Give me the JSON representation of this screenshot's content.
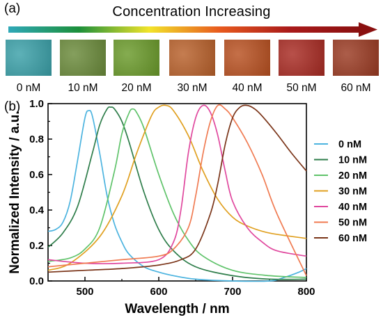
{
  "figure": {
    "panel_a_label": "(a)",
    "panel_b_label": "(b)",
    "arrow_title": "Concentration Increasing",
    "gradient_colors": [
      "#2fa8b8",
      "#1b8f3a",
      "#f2e42a",
      "#e85a1e",
      "#a91a1a",
      "#8a1010"
    ],
    "images": [
      {
        "label": "0 nM",
        "color": "#3aa0a8"
      },
      {
        "label": "10 nM",
        "color": "#6a8a3a"
      },
      {
        "label": "20 nM",
        "color": "#6a9a2a"
      },
      {
        "label": "30 nM",
        "color": "#b8602a"
      },
      {
        "label": "40 nM",
        "color": "#b85020"
      },
      {
        "label": "50 nM",
        "color": "#a82a22"
      },
      {
        "label": "60 nM",
        "color": "#9a3a22"
      }
    ]
  },
  "chart_data": {
    "type": "line",
    "title": "",
    "xlabel": "Wavelength / nm",
    "ylabel": "Normalized Intensity / a.u.",
    "xlim": [
      450,
      800
    ],
    "ylim": [
      0.0,
      1.0
    ],
    "xticks": [
      "500",
      "600",
      "700",
      "800"
    ],
    "yticks": [
      "0.0",
      "0.2",
      "0.4",
      "0.6",
      "0.8",
      "1.0"
    ],
    "legend_position": "right",
    "grid": false,
    "series": [
      {
        "name": "0 nM",
        "color": "#4bb3df",
        "x": [
          450,
          460,
          470,
          480,
          490,
          500,
          505,
          510,
          520,
          530,
          540,
          550,
          560,
          580,
          600,
          620,
          650,
          700,
          750,
          770,
          790,
          800
        ],
        "y": [
          0.28,
          0.29,
          0.33,
          0.45,
          0.68,
          0.92,
          0.96,
          0.93,
          0.72,
          0.48,
          0.32,
          0.22,
          0.15,
          0.08,
          0.05,
          0.03,
          0.01,
          0.0,
          0.0,
          0.02,
          0.05,
          0.07
        ]
      },
      {
        "name": "10 nM",
        "color": "#2e7d4a",
        "x": [
          450,
          470,
          490,
          510,
          520,
          530,
          535,
          540,
          550,
          560,
          580,
          600,
          620,
          650,
          700,
          750,
          800
        ],
        "y": [
          0.19,
          0.27,
          0.42,
          0.72,
          0.88,
          0.97,
          0.98,
          0.97,
          0.9,
          0.78,
          0.5,
          0.29,
          0.17,
          0.08,
          0.03,
          0.01,
          0.01
        ]
      },
      {
        "name": "20 nM",
        "color": "#5fc36a",
        "x": [
          450,
          480,
          500,
          520,
          540,
          550,
          560,
          565,
          570,
          580,
          600,
          620,
          640,
          660,
          700,
          750,
          800
        ],
        "y": [
          0.11,
          0.13,
          0.18,
          0.3,
          0.62,
          0.83,
          0.95,
          0.97,
          0.95,
          0.86,
          0.6,
          0.38,
          0.23,
          0.14,
          0.06,
          0.03,
          0.02
        ]
      },
      {
        "name": "30 nM",
        "color": "#e0a020",
        "x": [
          450,
          480,
          520,
          550,
          570,
          590,
          600,
          610,
          620,
          640,
          660,
          680,
          700,
          720,
          750,
          800
        ],
        "y": [
          0.06,
          0.1,
          0.25,
          0.48,
          0.72,
          0.93,
          0.98,
          0.99,
          0.96,
          0.82,
          0.62,
          0.46,
          0.36,
          0.31,
          0.27,
          0.24
        ]
      },
      {
        "name": "40 nM",
        "color": "#e0489e",
        "x": [
          450,
          500,
          550,
          600,
          620,
          630,
          640,
          650,
          660,
          670,
          680,
          690,
          700,
          720,
          740,
          760,
          800
        ],
        "y": [
          0.12,
          0.1,
          0.1,
          0.12,
          0.22,
          0.4,
          0.72,
          0.92,
          0.99,
          0.95,
          0.82,
          0.62,
          0.45,
          0.3,
          0.22,
          0.17,
          0.14
        ]
      },
      {
        "name": "50 nM",
        "color": "#f07b52",
        "x": [
          450,
          500,
          550,
          600,
          620,
          640,
          650,
          660,
          670,
          680,
          690,
          700,
          720,
          740,
          760,
          800
        ],
        "y": [
          0.08,
          0.1,
          0.12,
          0.14,
          0.18,
          0.3,
          0.48,
          0.72,
          0.9,
          0.99,
          0.97,
          0.92,
          0.78,
          0.6,
          0.38,
          0.03
        ]
      },
      {
        "name": "60 nM",
        "color": "#7a3418",
        "x": [
          450,
          500,
          550,
          600,
          630,
          650,
          670,
          680,
          690,
          700,
          710,
          720,
          730,
          740,
          760,
          780,
          800
        ],
        "y": [
          0.05,
          0.06,
          0.07,
          0.09,
          0.12,
          0.18,
          0.38,
          0.55,
          0.77,
          0.92,
          0.98,
          0.99,
          0.97,
          0.93,
          0.83,
          0.72,
          0.62
        ]
      }
    ]
  }
}
